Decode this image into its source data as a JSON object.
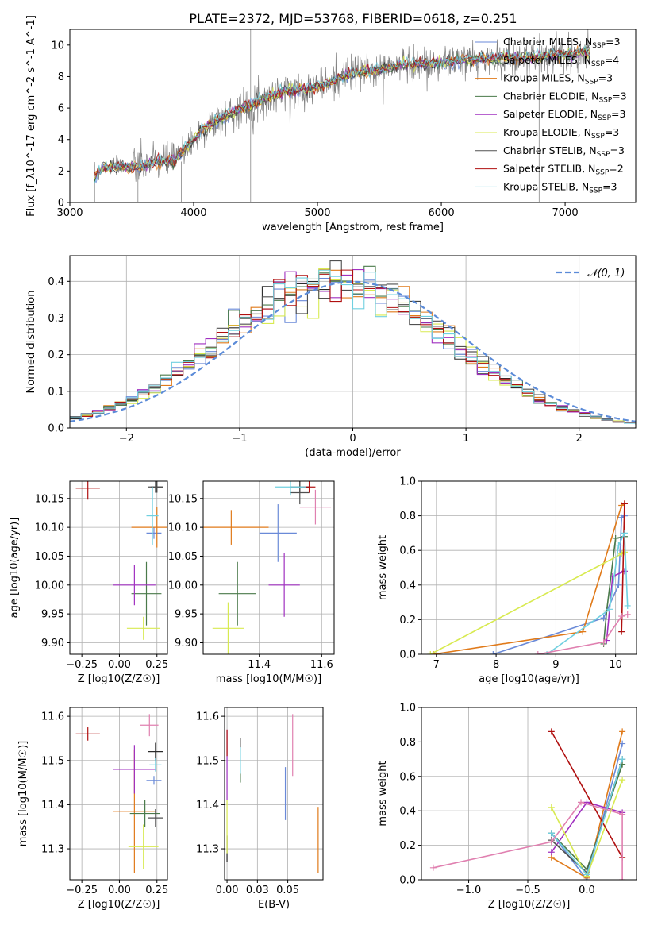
{
  "figure": {
    "title": "PLATE=2372, MJD=53768, FIBERID=0618, z=0.251"
  },
  "models": [
    {
      "name": "Chabrier MILES",
      "nssp": "3",
      "color": "#6a8ad8"
    },
    {
      "name": "Salpeter MILES",
      "nssp": "4",
      "color": "#2a2a2a"
    },
    {
      "name": "Kroupa MILES",
      "nssp": "3",
      "color": "#e07a1a"
    },
    {
      "name": "Chabrier ELODIE",
      "nssp": "3",
      "color": "#4a7a4a"
    },
    {
      "name": "Salpeter ELODIE",
      "nssp": "3",
      "color": "#a030c0"
    },
    {
      "name": "Kroupa ELODIE",
      "nssp": "3",
      "color": "#d8ea50"
    },
    {
      "name": "Chabrier STELIB",
      "nssp": "3",
      "color": "#505050"
    },
    {
      "name": "Salpeter STELIB",
      "nssp": "2",
      "color": "#b01010"
    },
    {
      "name": "Kroupa STELIB",
      "nssp": "3",
      "color": "#70d0e0"
    }
  ],
  "chart_data": [
    {
      "id": "spectrum",
      "type": "line",
      "xlabel": "wavelength [Angstrom, rest frame]",
      "ylabel": "Flux [f_λ10^-17 erg cm^-2 s^-1 A^-1]",
      "xlim": [
        3000,
        7570
      ],
      "ylim": [
        0,
        11
      ],
      "xticks": [
        3000,
        4000,
        5000,
        6000,
        7000
      ],
      "yticks": [
        0,
        2,
        4,
        6,
        8,
        10
      ],
      "legend": "top-right",
      "continuum": [
        [
          3200,
          1.6
        ],
        [
          3260,
          2.2
        ],
        [
          3400,
          2.3
        ],
        [
          3550,
          2.2
        ],
        [
          3700,
          2.6
        ],
        [
          3850,
          2.7
        ],
        [
          3950,
          3.6
        ],
        [
          4100,
          4.8
        ],
        [
          4300,
          5.7
        ],
        [
          4500,
          6.3
        ],
        [
          4700,
          7.0
        ],
        [
          4900,
          7.2
        ],
        [
          5100,
          7.6
        ],
        [
          5300,
          8.3
        ],
        [
          5500,
          8.4
        ],
        [
          5700,
          8.8
        ],
        [
          5900,
          8.8
        ],
        [
          6100,
          9.0
        ],
        [
          6300,
          9.1
        ],
        [
          6500,
          9.2
        ],
        [
          6700,
          9.2
        ],
        [
          6900,
          9.3
        ],
        [
          7100,
          9.5
        ],
        [
          7200,
          9.6
        ]
      ],
      "data_noise_note": "data shown in grey with large noise; models overplotted"
    },
    {
      "id": "residuals",
      "type": "line",
      "xlabel": "(data-model)/error",
      "ylabel": "Normed distribution",
      "xlim": [
        -2.5,
        2.5
      ],
      "ylim": [
        0,
        0.47
      ],
      "xticks": [
        -2,
        -1,
        0,
        1,
        2
      ],
      "yticks": [
        0.0,
        0.1,
        0.2,
        0.3,
        0.4
      ],
      "legend": "top-right",
      "gaussian_label": "𝒩(0, 1)",
      "gaussian_color": "#5b8bd8"
    },
    {
      "id": "age_Z",
      "type": "scatter",
      "xlabel": "Z [log10(Z/Z☉)]",
      "ylabel": "age [log10(age/yr)]",
      "xlim": [
        -0.33,
        0.32
      ],
      "ylim": [
        9.88,
        10.18
      ],
      "xticks": [
        -0.25,
        0.0,
        0.25
      ],
      "yticks": [
        9.9,
        9.95,
        10.0,
        10.05,
        10.1,
        10.15
      ],
      "points": [
        {
          "m": 0,
          "x": 0.23,
          "y": 10.09,
          "ex": 0.05,
          "ey": 0.01
        },
        {
          "m": 1,
          "x": 0.25,
          "y": 10.17,
          "ex": 0.04,
          "ey": 0.01
        },
        {
          "m": 2,
          "x": 0.25,
          "y": 10.1,
          "ex": 0.17,
          "ey": 0.035
        },
        {
          "m": 3,
          "x": 0.18,
          "y": 9.985,
          "ex": 0.1,
          "ey": 0.055
        },
        {
          "m": 4,
          "x": 0.1,
          "y": 10.0,
          "ex": 0.14,
          "ey": 0.035
        },
        {
          "m": 5,
          "x": 0.16,
          "y": 9.925,
          "ex": 0.11,
          "ey": 0.02
        },
        {
          "m": 6,
          "x": 0.24,
          "y": 10.17,
          "ex": 0.05,
          "ey": 0.01
        },
        {
          "m": 7,
          "x": -0.21,
          "y": 10.168,
          "ex": 0.08,
          "ey": 0.02
        },
        {
          "m": 8,
          "x": 0.22,
          "y": 10.12,
          "ex": 0.04,
          "ey": 0.05
        }
      ]
    },
    {
      "id": "age_mass",
      "type": "scatter",
      "xlabel": "mass [log10(M/M☉)]",
      "ylabel": "",
      "xlim": [
        11.22,
        11.64
      ],
      "ylim": [
        9.88,
        10.18
      ],
      "xticks": [
        11.4,
        11.6
      ],
      "yticks": [
        9.9,
        9.95,
        10.0,
        10.05,
        10.1,
        10.15
      ],
      "points": [
        {
          "m": 0,
          "x": 11.46,
          "y": 10.09,
          "ex": 0.06,
          "ey": 0.05
        },
        {
          "m": 1,
          "x": 11.53,
          "y": 10.17,
          "ex": 0.03,
          "ey": 0.01
        },
        {
          "m": 2,
          "x": 11.31,
          "y": 10.1,
          "ex": 0.12,
          "ey": 0.03
        },
        {
          "m": 3,
          "x": 11.33,
          "y": 9.985,
          "ex": 0.06,
          "ey": 0.055
        },
        {
          "m": 4,
          "x": 11.48,
          "y": 10.0,
          "ex": 0.05,
          "ey": 0.055
        },
        {
          "m": 5,
          "x": 11.3,
          "y": 9.925,
          "ex": 0.05,
          "ey": 0.045
        },
        {
          "m": 6,
          "x": 11.53,
          "y": 10.16,
          "ex": 0.03,
          "ey": 0.02
        },
        {
          "m": 7,
          "x": 11.56,
          "y": 10.17,
          "ex": 0.02,
          "ey": 0.01
        },
        {
          "m": 8,
          "x": 11.5,
          "y": 10.17,
          "ex": 0.05,
          "ey": 0.015
        },
        {
          "m": 9,
          "x": 11.58,
          "y": 10.135,
          "ex": 0.05,
          "ey": 0.03
        }
      ]
    },
    {
      "id": "mass_weight_age",
      "type": "line",
      "xlabel": "age [log10(age/yr)]",
      "ylabel": "mass weight",
      "xlim": [
        6.75,
        10.35
      ],
      "ylim": [
        0,
        1.0
      ],
      "xticks": [
        7,
        8,
        9,
        10
      ],
      "yticks": [
        0.0,
        0.2,
        0.4,
        0.6,
        0.8,
        1.0
      ],
      "series": [
        {
          "m": 0,
          "x": [
            7.95,
            9.8,
            10.05,
            10.1,
            10.15
          ],
          "y": [
            0.0,
            0.21,
            0.4,
            0.79,
            0.8
          ]
        },
        {
          "m": 2,
          "x": [
            6.95,
            9.45,
            10.1,
            10.15,
            10.15
          ],
          "y": [
            0.0,
            0.13,
            0.86,
            0.87,
            0.87
          ]
        },
        {
          "m": 3,
          "x": [
            9.8,
            9.85,
            10.0,
            10.15
          ],
          "y": [
            0.06,
            0.25,
            0.67,
            0.68
          ]
        },
        {
          "m": 4,
          "x": [
            9.85,
            9.95,
            10.15
          ],
          "y": [
            0.08,
            0.45,
            0.48
          ]
        },
        {
          "m": 5,
          "x": [
            6.9,
            10.1,
            10.15
          ],
          "y": [
            0.0,
            0.58,
            0.59
          ]
        },
        {
          "m": 7,
          "x": [
            10.1,
            10.15
          ],
          "y": [
            0.13,
            0.87
          ]
        },
        {
          "m": 8,
          "x": [
            8.85,
            9.9,
            10.05,
            10.15,
            10.2
          ],
          "y": [
            0.0,
            0.26,
            0.63,
            0.7,
            0.28
          ]
        },
        {
          "m": 9,
          "x": [
            8.7,
            9.8,
            10.1,
            10.2
          ],
          "y": [
            0.0,
            0.07,
            0.22,
            0.23
          ]
        }
      ]
    },
    {
      "id": "mass_Z",
      "type": "scatter",
      "xlabel": "Z [log10(Z/Z☉)]",
      "ylabel": "mass [log10(M/M☉)]",
      "xlim": [
        -0.33,
        0.32
      ],
      "ylim": [
        11.23,
        11.62
      ],
      "xticks": [
        -0.25,
        0.0,
        0.25
      ],
      "yticks": [
        11.3,
        11.4,
        11.5,
        11.6
      ],
      "points": [
        {
          "m": 0,
          "x": 0.23,
          "y": 11.455,
          "ex": 0.05,
          "ey": 0.01
        },
        {
          "m": 1,
          "x": 0.24,
          "y": 11.52,
          "ex": 0.05,
          "ey": 0.02
        },
        {
          "m": 2,
          "x": 0.1,
          "y": 11.385,
          "ex": 0.14,
          "ey": 0.14
        },
        {
          "m": 3,
          "x": 0.17,
          "y": 11.38,
          "ex": 0.1,
          "ey": 0.03
        },
        {
          "m": 4,
          "x": 0.1,
          "y": 11.48,
          "ex": 0.14,
          "ey": 0.055
        },
        {
          "m": 5,
          "x": 0.16,
          "y": 11.305,
          "ex": 0.1,
          "ey": 0.05
        },
        {
          "m": 6,
          "x": 0.24,
          "y": 11.37,
          "ex": 0.05,
          "ey": 0.02
        },
        {
          "m": 7,
          "x": -0.21,
          "y": 11.56,
          "ex": 0.08,
          "ey": 0.015
        },
        {
          "m": 8,
          "x": 0.24,
          "y": 11.49,
          "ex": 0.04,
          "ey": 0.015
        },
        {
          "m": 9,
          "x": 0.2,
          "y": 11.58,
          "ex": 0.06,
          "ey": 0.025
        }
      ]
    },
    {
      "id": "mass_ebv",
      "type": "scatter",
      "xlabel": "E(B-V)",
      "ylabel": "",
      "xlim": [
        -0.002,
        0.079
      ],
      "ylim": [
        11.23,
        11.62
      ],
      "xticks": [
        0.0,
        0.025,
        0.05
      ],
      "yticks": [
        11.3,
        11.4,
        11.5,
        11.6
      ],
      "points": [
        {
          "m": 0,
          "x": 0.048,
          "y": 11.425,
          "ey": 0.06
        },
        {
          "m": 1,
          "x": 0.0,
          "y": 11.3,
          "ey": 0.03
        },
        {
          "m": 2,
          "x": 0.075,
          "y": 11.32,
          "ey": 0.075
        },
        {
          "m": 3,
          "x": 0.011,
          "y": 11.49,
          "ey": 0.04
        },
        {
          "m": 4,
          "x": 0.0,
          "y": 11.49,
          "ey": 0.08
        },
        {
          "m": 5,
          "x": 0.0,
          "y": 11.35,
          "ey": 0.06
        },
        {
          "m": 6,
          "x": 0.011,
          "y": 11.53,
          "ey": 0.02
        },
        {
          "m": 7,
          "x": 0.0,
          "y": 11.54,
          "ey": 0.03
        },
        {
          "m": 8,
          "x": 0.011,
          "y": 11.5,
          "ey": 0.03
        },
        {
          "m": 9,
          "x": 0.054,
          "y": 11.535,
          "ey": 0.07
        }
      ]
    },
    {
      "id": "mass_weight_Z",
      "type": "line",
      "xlabel": "Z [log10(Z/Z☉)]",
      "ylabel": "mass weight",
      "xlim": [
        -1.4,
        0.42
      ],
      "ylim": [
        0,
        1.0
      ],
      "xticks": [
        -1.0,
        -0.5,
        0.0
      ],
      "yticks": [
        0.0,
        0.2,
        0.4,
        0.6,
        0.8,
        1.0
      ],
      "series": [
        {
          "m": 0,
          "x": [
            -0.3,
            0.0,
            0.3
          ],
          "y": [
            0.27,
            0.0,
            0.79
          ]
        },
        {
          "m": 2,
          "x": [
            -0.3,
            0.0,
            0.3
          ],
          "y": [
            0.13,
            0.01,
            0.86
          ]
        },
        {
          "m": 3,
          "x": [
            -0.3,
            0.0,
            0.3
          ],
          "y": [
            0.27,
            0.06,
            0.67
          ]
        },
        {
          "m": 4,
          "x": [
            -0.3,
            0.0,
            0.3
          ],
          "y": [
            0.16,
            0.45,
            0.39
          ]
        },
        {
          "m": 5,
          "x": [
            -0.3,
            0.0,
            0.3
          ],
          "y": [
            0.42,
            0.02,
            0.58
          ]
        },
        {
          "m": 6,
          "x": [
            -0.3,
            0.0,
            0.3
          ],
          "y": [
            0.23,
            0.04,
            0.7
          ]
        },
        {
          "m": 7,
          "x": [
            -0.3,
            0.3
          ],
          "y": [
            0.86,
            0.13
          ]
        },
        {
          "m": 8,
          "x": [
            -0.3,
            0.0,
            0.3
          ],
          "y": [
            0.27,
            0.03,
            0.7
          ]
        },
        {
          "m": 9,
          "x": [
            -1.3,
            -0.3,
            -0.05,
            0.3,
            0.3
          ],
          "y": [
            0.07,
            0.22,
            0.45,
            0.38,
            0.0
          ]
        }
      ]
    }
  ]
}
